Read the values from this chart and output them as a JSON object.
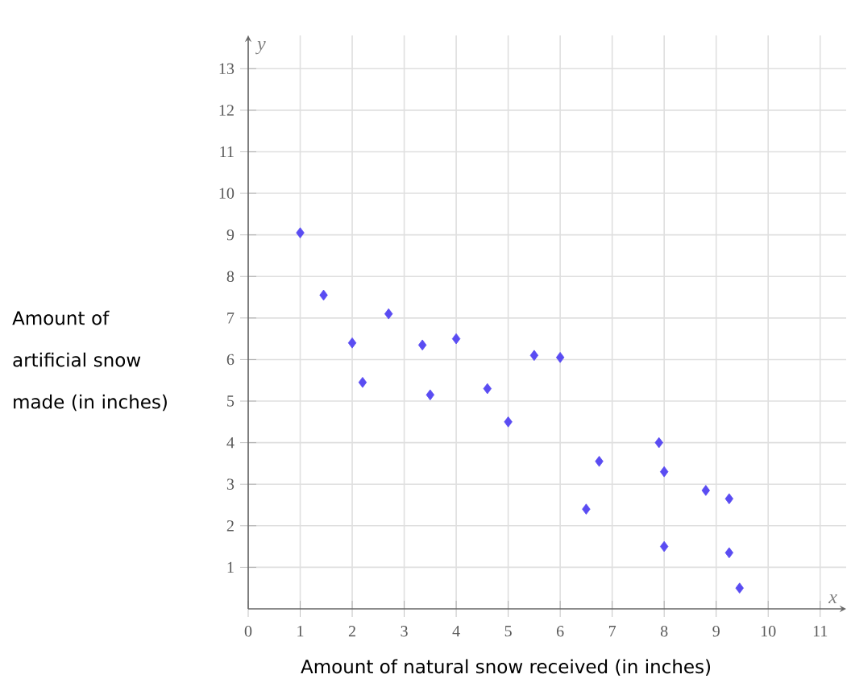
{
  "chart_data": {
    "type": "scatter",
    "xlabel": "Amount of natural snow received  (in inches)",
    "ylabel": "Amount of artificial snow made (in inches)",
    "annotations": [
      "x",
      "y"
    ],
    "x": [
      1,
      1.45,
      2,
      2.2,
      2.7,
      3.35,
      3.5,
      4,
      4.6,
      5,
      5.5,
      6,
      6.5,
      6.75,
      7.9,
      8,
      8,
      8.8,
      9.25,
      9.25,
      9.45
    ],
    "values": [
      9.05,
      7.55,
      6.4,
      5.45,
      7.1,
      6.35,
      5.15,
      6.5,
      5.3,
      4.5,
      6.1,
      6.05,
      2.4,
      3.55,
      4.0,
      3.3,
      1.5,
      2.85,
      2.65,
      1.35,
      0.5
    ],
    "color": "#5a4cf2",
    "marker": "diamond",
    "grid": true,
    "xlim": [
      0,
      11.5
    ],
    "ylim": [
      0,
      13.8
    ],
    "xticks": [
      0,
      1,
      2,
      3,
      4,
      5,
      6,
      7,
      8,
      9,
      10,
      11
    ],
    "yticks": [
      1,
      2,
      3,
      4,
      5,
      6,
      7,
      8,
      9,
      10,
      11,
      12,
      13
    ]
  }
}
